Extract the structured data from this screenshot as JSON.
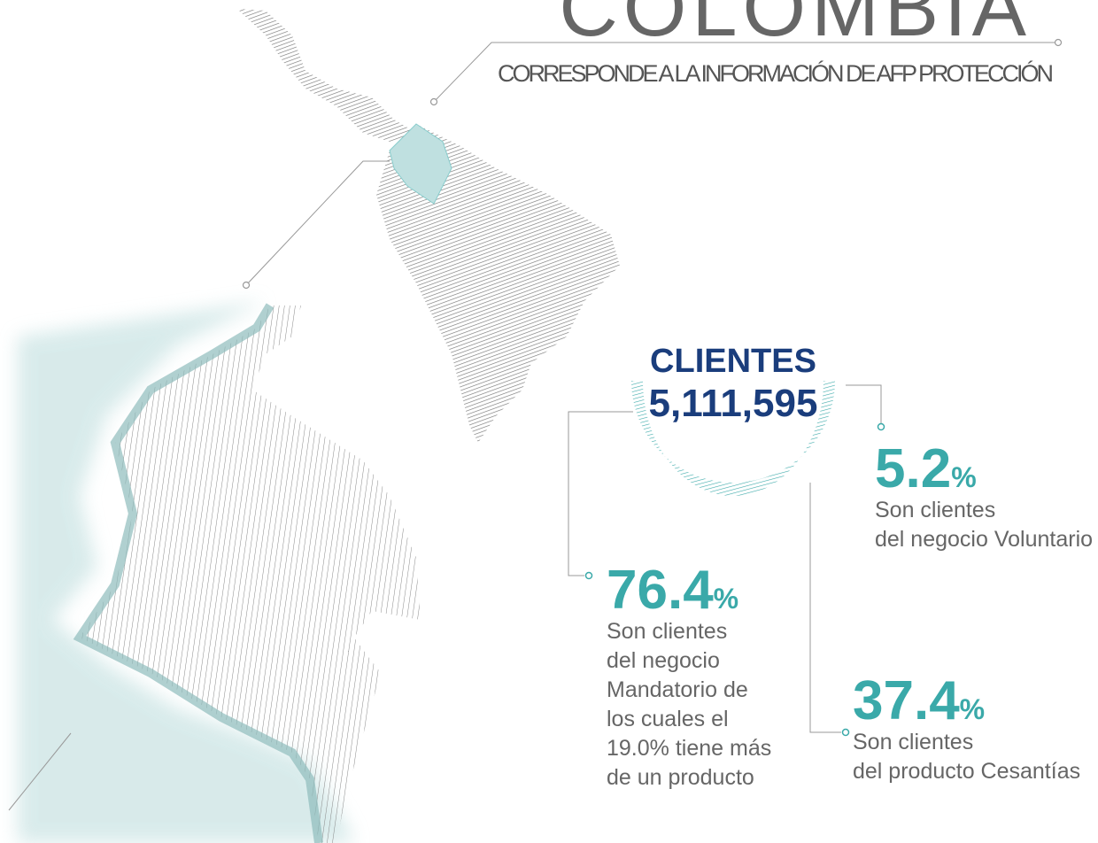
{
  "header": {
    "title": "COLOMBIA",
    "subtitle": "CORRESPONDE A LA INFORMACIÓN DE AFP PROTECCIÓN"
  },
  "clients": {
    "label": "CLIENTES",
    "total": "5,111,595"
  },
  "stats": [
    {
      "value": "5.2",
      "unit": "%",
      "lines": [
        "Son clientes",
        "del negocio Voluntario"
      ]
    },
    {
      "value": "76.4",
      "unit": "%",
      "lines": [
        "Son clientes",
        "del negocio",
        "Mandatorio de",
        "los cuales el",
        "19.0% tiene más",
        "de un producto"
      ]
    },
    {
      "value": "37.4",
      "unit": "%",
      "lines": [
        "Son clientes",
        "del producto Cesantías"
      ]
    }
  ]
}
